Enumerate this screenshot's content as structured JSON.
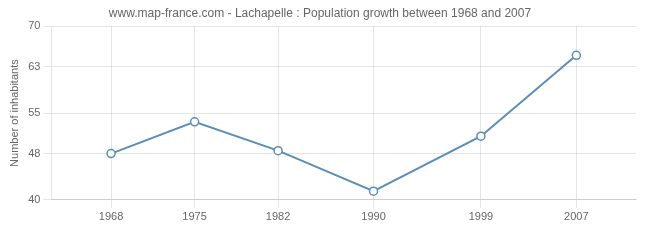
{
  "chart_data": {
    "type": "line",
    "title": "www.map-france.com - Lachapelle : Population growth between 1968 and 2007",
    "ylabel": "Number of inhabitants",
    "x": [
      1968,
      1975,
      1982,
      1990,
      1999,
      2007
    ],
    "values": [
      48,
      53.5,
      48.5,
      41.5,
      51,
      65
    ],
    "color": "#5b8db8",
    "marker": "circle",
    "xlim": [
      1963,
      2012
    ],
    "xticks": [
      1968,
      1975,
      1982,
      1990,
      1999,
      2007
    ],
    "ylim": [
      40,
      70
    ],
    "yticks": [
      40,
      48,
      55,
      63,
      70
    ],
    "grid": true
  }
}
